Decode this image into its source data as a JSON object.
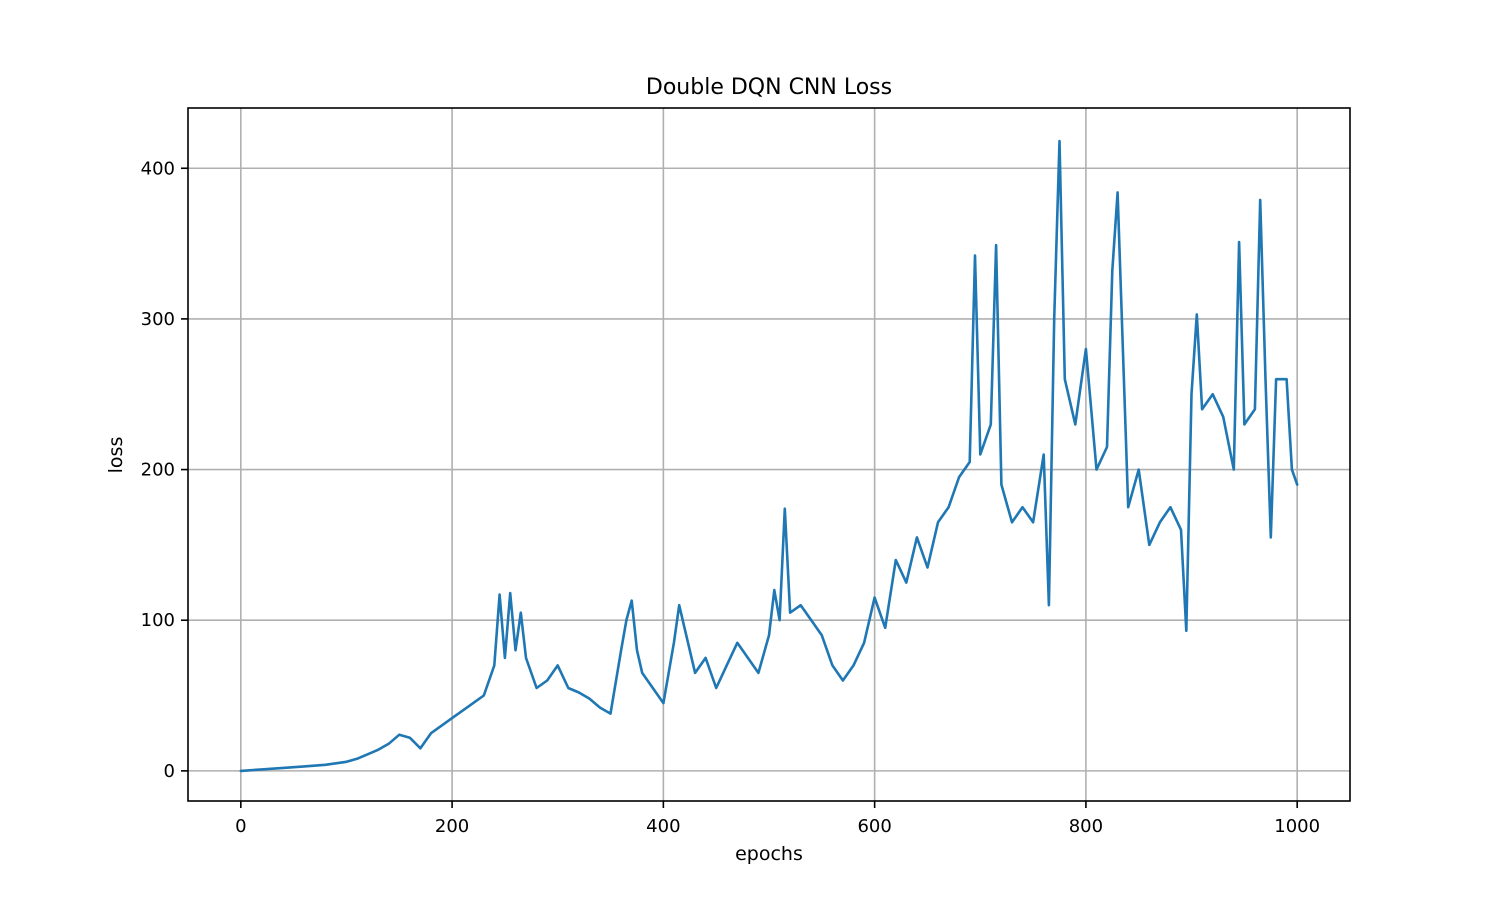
{
  "chart_data": {
    "type": "line",
    "title": "Double DQN CNN Loss",
    "xlabel": "epochs",
    "ylabel": "loss",
    "xlim": [
      -50,
      1050
    ],
    "ylim": [
      -20,
      440
    ],
    "xticks": [
      0,
      200,
      400,
      600,
      800,
      1000
    ],
    "yticks": [
      0,
      100,
      200,
      300,
      400
    ],
    "grid": true,
    "legend": "none",
    "series": [
      {
        "color": "#1f77b4",
        "x": [
          0,
          20,
          40,
          60,
          80,
          100,
          110,
          120,
          130,
          140,
          150,
          160,
          170,
          180,
          190,
          200,
          210,
          220,
          230,
          240,
          245,
          250,
          255,
          260,
          265,
          270,
          280,
          290,
          300,
          310,
          320,
          330,
          340,
          350,
          360,
          365,
          370,
          375,
          380,
          390,
          400,
          410,
          415,
          420,
          430,
          440,
          450,
          460,
          470,
          480,
          490,
          500,
          505,
          510,
          515,
          520,
          530,
          540,
          550,
          560,
          570,
          580,
          590,
          600,
          610,
          620,
          630,
          640,
          650,
          660,
          670,
          680,
          690,
          695,
          700,
          710,
          715,
          720,
          730,
          740,
          750,
          760,
          765,
          770,
          775,
          780,
          790,
          800,
          810,
          820,
          825,
          830,
          840,
          850,
          860,
          870,
          880,
          890,
          895,
          900,
          905,
          910,
          920,
          930,
          940,
          945,
          950,
          960,
          965,
          970,
          975,
          980,
          990,
          995,
          1000
        ],
        "y": [
          0,
          1,
          2,
          3,
          4,
          6,
          8,
          11,
          14,
          18,
          24,
          22,
          15,
          25,
          30,
          35,
          40,
          45,
          50,
          70,
          117,
          75,
          118,
          80,
          105,
          75,
          55,
          60,
          70,
          55,
          52,
          48,
          42,
          38,
          80,
          100,
          113,
          80,
          65,
          55,
          45,
          85,
          110,
          95,
          65,
          75,
          55,
          70,
          85,
          75,
          65,
          90,
          120,
          100,
          174,
          105,
          110,
          100,
          90,
          70,
          60,
          70,
          85,
          115,
          95,
          140,
          125,
          155,
          135,
          165,
          175,
          195,
          205,
          342,
          210,
          230,
          349,
          190,
          165,
          175,
          165,
          210,
          110,
          300,
          418,
          260,
          230,
          280,
          200,
          215,
          332,
          384,
          175,
          200,
          150,
          165,
          175,
          160,
          93,
          250,
          303,
          240,
          250,
          235,
          200,
          351,
          230,
          240,
          379,
          260,
          155,
          260,
          260,
          200,
          190
        ]
      }
    ]
  }
}
